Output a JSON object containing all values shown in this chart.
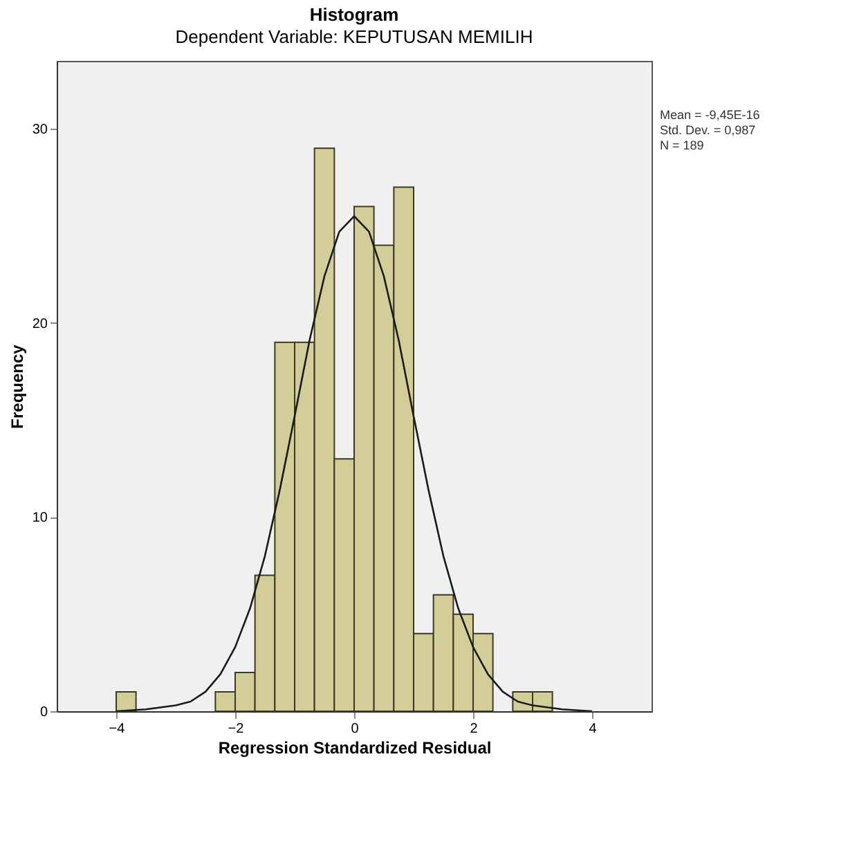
{
  "chart_data": {
    "type": "histogram",
    "title": "Histogram",
    "subtitle": "Dependent Variable: KEPUTUSAN MEMILIH",
    "xlabel": "Regression Standardized Residual",
    "ylabel": "Frequency",
    "bins": [
      -4,
      -3.667,
      -3.333,
      -3,
      -2.667,
      -2.333,
      -2,
      -1.667,
      -1.333,
      -1,
      -0.667,
      -0.333,
      0,
      0.333,
      0.667,
      1,
      1.333,
      1.667,
      2,
      2.333,
      2.667,
      3,
      3.333
    ],
    "values": [
      1,
      0,
      0,
      0,
      0,
      1,
      2,
      7,
      19,
      19,
      29,
      13,
      26,
      24,
      27,
      4,
      6,
      5,
      4,
      0,
      1,
      1
    ],
    "color": "#d3ce97",
    "series": [
      {
        "type": "line",
        "color": "#1a1a1a",
        "x": [
          -4,
          -3.5,
          -3,
          -2.75,
          -2.5,
          -2.25,
          -2,
          -1.75,
          -1.5,
          -1.25,
          -1,
          -0.75,
          -0.5,
          -0.25,
          0,
          0.25,
          0.5,
          0.75,
          1,
          1.25,
          1.5,
          1.75,
          2,
          2.25,
          2.5,
          2.75,
          3,
          3.5,
          4
        ],
        "values": [
          0,
          0.1,
          0.3,
          0.5,
          1,
          1.9,
          3.3,
          5.3,
          8,
          11.4,
          15.2,
          19.1,
          22.4,
          24.7,
          25.5,
          24.7,
          22.4,
          19.1,
          15.2,
          11.4,
          8,
          5.3,
          3.3,
          1.9,
          1,
          0.5,
          0.3,
          0.1,
          0
        ]
      }
    ],
    "xlim": [
      -5,
      5
    ],
    "xticks": [
      -4,
      -2,
      0,
      2,
      4
    ],
    "ylim": [
      0,
      33.5
    ],
    "yticks": [
      0,
      10,
      20,
      30
    ],
    "grid": false,
    "annotations": [
      "Mean = -9,45E-16",
      "Std. Dev. = 0,987",
      "N = 189"
    ]
  }
}
